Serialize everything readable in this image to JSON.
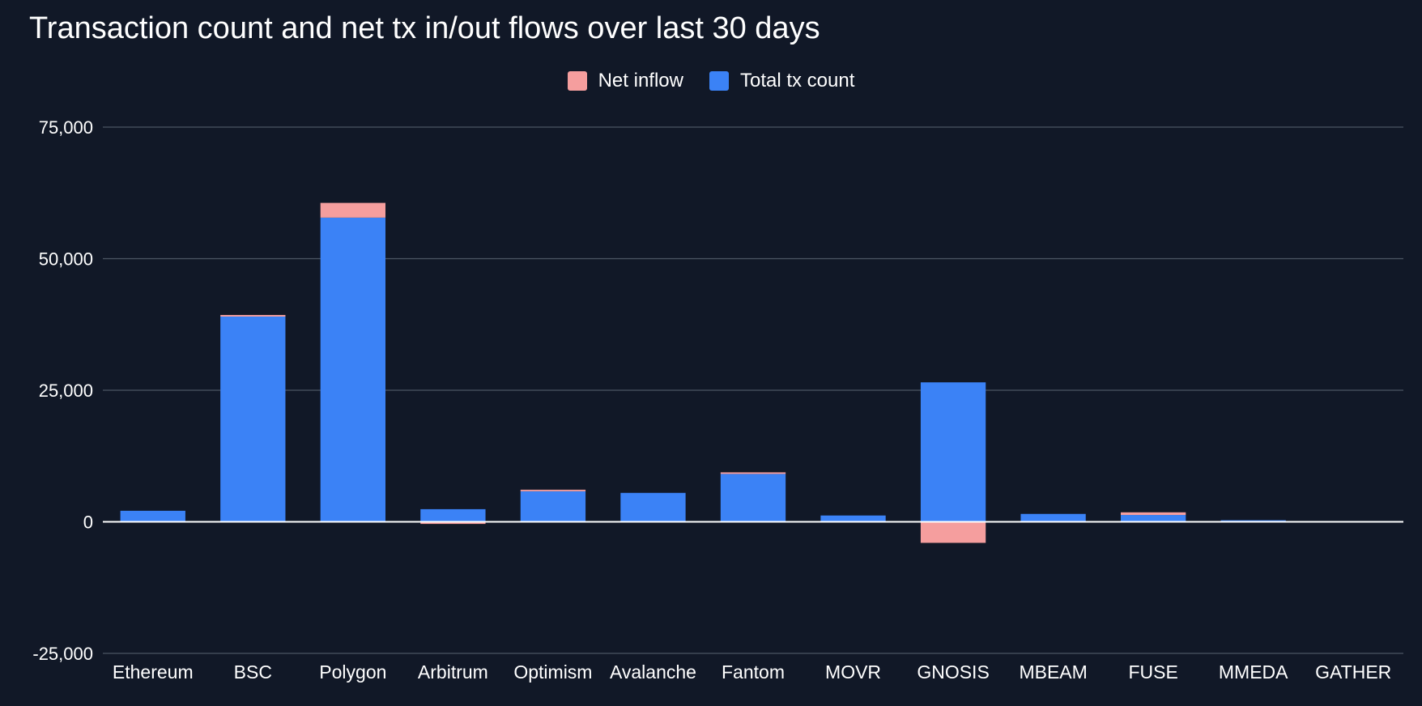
{
  "chart_data": {
    "type": "bar",
    "stacked": true,
    "title": "Transaction count and net tx in/out flows over last 30 days",
    "xlabel": "",
    "ylabel": "",
    "ylim": [
      -25000,
      75000
    ],
    "yticks": [
      -25000,
      0,
      25000,
      50000,
      75000
    ],
    "ytick_labels": [
      "-25,000",
      "0",
      "25,000",
      "50,000",
      "75,000"
    ],
    "grid": true,
    "legend_position": "top-center",
    "categories": [
      "Ethereum",
      "BSC",
      "Polygon",
      "Arbitrum",
      "Optimism",
      "Avalanche",
      "Fantom",
      "MOVR",
      "GNOSIS",
      "MBEAM",
      "FUSE",
      "MMEDA",
      "GATHER"
    ],
    "series": [
      {
        "name": "Total tx count",
        "color": "#3b82f6",
        "values": [
          2100,
          39000,
          57800,
          2400,
          5800,
          5500,
          9100,
          1200,
          26500,
          1500,
          1300,
          300,
          0
        ]
      },
      {
        "name": "Net inflow",
        "color": "#f59e9e",
        "values": [
          0,
          300,
          2800,
          -400,
          300,
          0,
          300,
          0,
          -4000,
          0,
          500,
          0,
          0
        ]
      }
    ]
  }
}
